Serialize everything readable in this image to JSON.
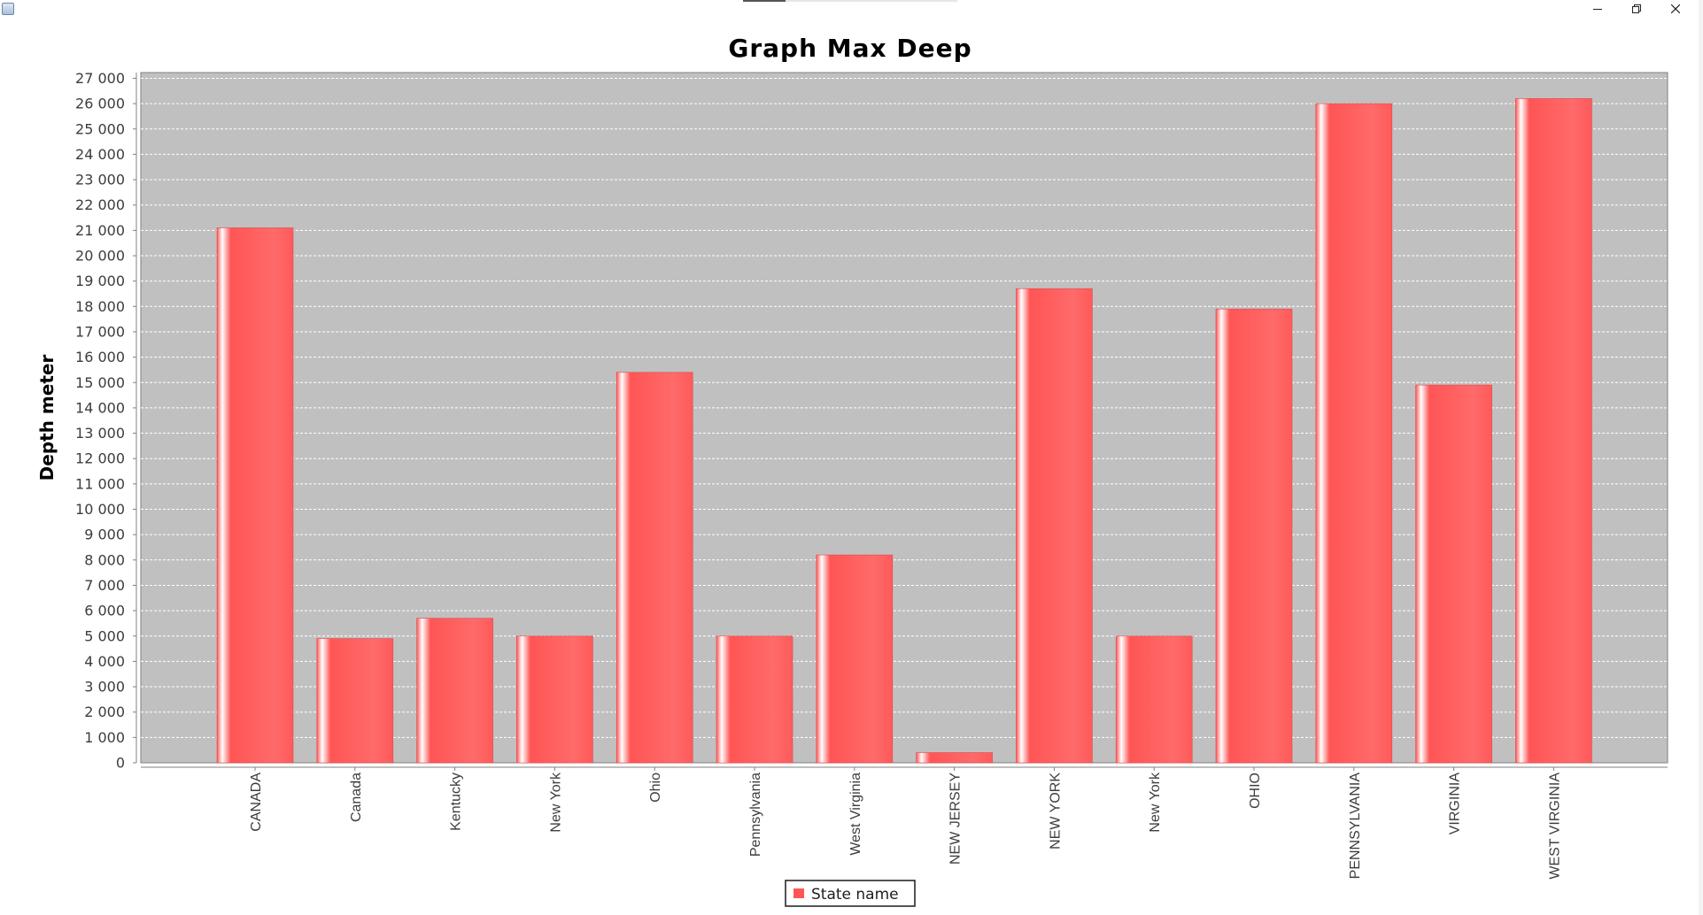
{
  "window": {
    "controls": {
      "minimize_icon": "minimize-icon",
      "restore_icon": "restore-icon",
      "close_icon": "close-icon"
    }
  },
  "colors": {
    "plot_background": "#c0c0c0",
    "bar_base": "#ff5555",
    "bar_highlight": "#ffffff",
    "gridline": "#ffffff",
    "axis": "#808080"
  },
  "chart_data": {
    "type": "bar",
    "title": "Graph Max Deep",
    "xlabel": "",
    "ylabel": "Depth meter",
    "ylim": [
      0,
      27000
    ],
    "ytick_step": 1000,
    "ytick_labels": [
      "0",
      "1 000",
      "2 000",
      "3 000",
      "4 000",
      "5 000",
      "6 000",
      "7 000",
      "8 000",
      "9 000",
      "10 000",
      "11 000",
      "12 000",
      "13 000",
      "14 000",
      "15 000",
      "16 000",
      "17 000",
      "18 000",
      "19 000",
      "20 000",
      "21 000",
      "22 000",
      "23 000",
      "24 000",
      "25 000",
      "26 000",
      "27 000"
    ],
    "grid": true,
    "legend_position": "bottom-center",
    "categories": [
      "CANADA",
      "Canada",
      "Kentucky",
      "New York",
      "Ohio",
      "Pennsylvania",
      "West Virginia",
      "NEW JERSEY",
      "NEW YORK",
      "New York",
      "OHIO",
      "PENNSYLVANIA",
      "VIRGINIA",
      "WEST VIRGINIA"
    ],
    "series": [
      {
        "name": "State name",
        "values": [
          21100,
          4900,
          5700,
          5000,
          15400,
          5000,
          8200,
          400,
          18700,
          5000,
          17900,
          26000,
          14900,
          26200
        ]
      }
    ]
  }
}
